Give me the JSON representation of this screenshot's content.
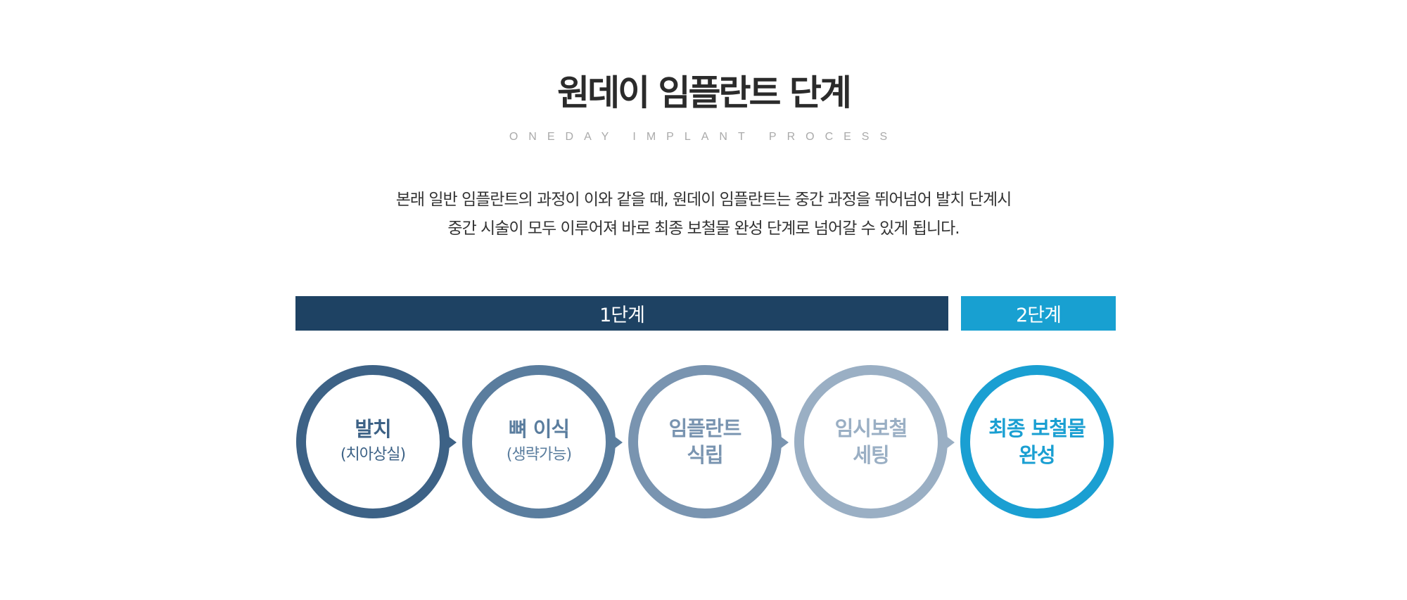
{
  "header": {
    "title": "원데이 임플란트 단계",
    "subtitle": "ONEDAY IMPLANT PROCESS"
  },
  "description": {
    "lines": [
      "본래 일반 임플란트의 과정이 이와 같을 때, 원데이 임플란트는 중간 과정을 뛰어넘어 발치 단계시",
      "중간 시술이 모두 이루어져 바로 최종 보철물 완성 단계로 넘어갈 수 있게 됩니다."
    ]
  },
  "phases": [
    {
      "label": "1단계",
      "color": "#1e4263"
    },
    {
      "label": "2단계",
      "color": "#18a0d1"
    }
  ],
  "steps": [
    {
      "main": "발치",
      "sub": "(치아상실)",
      "color": "#3d6286"
    },
    {
      "main": "뼈 이식",
      "sub": "(생략가능)",
      "color": "#5a7d9e"
    },
    {
      "main": "임플란트",
      "main2": "식립",
      "color": "#7994b0"
    },
    {
      "main": "임시보철",
      "main2": "세팅",
      "color": "#9aafc4"
    },
    {
      "main": "최종 보철물",
      "main2": "완성",
      "color": "#1a9fd2"
    }
  ]
}
